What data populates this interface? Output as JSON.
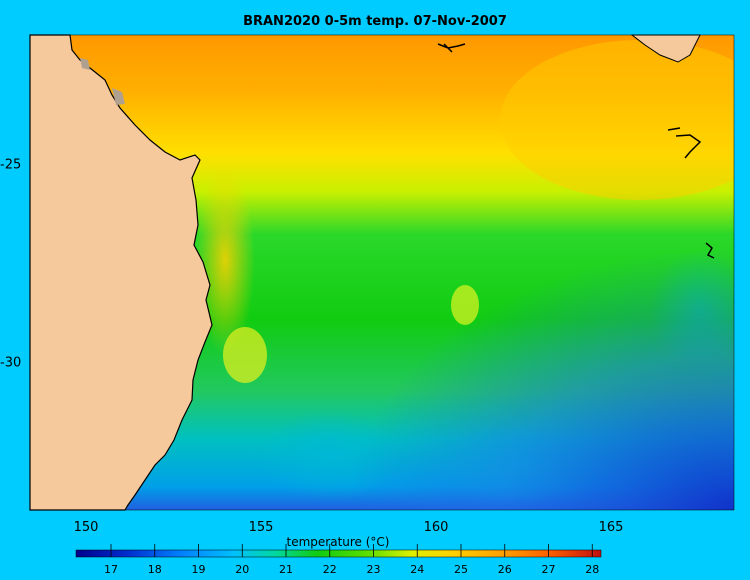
{
  "title": "BRAN2020 0-5m temp. 07-Nov-2007",
  "map": {
    "x_ticks": [
      "150",
      "155",
      "160",
      "165"
    ],
    "y_ticks": [
      "-25",
      "-30"
    ],
    "colorbar_label": "temperature (°C)",
    "colorbar_ticks": [
      "17",
      "18",
      "19",
      "20",
      "21",
      "22",
      "23",
      "24",
      "25",
      "26",
      "27",
      "28"
    ],
    "colors": {
      "background": "#00ccff",
      "land": "#f5c99b",
      "coastline": "#000000",
      "warm": "#ff9900",
      "mid": "#ffee00",
      "green": "#11cc11",
      "cool": "#00b0e0",
      "cold": "#1144dd"
    }
  },
  "chart_data": {
    "type": "heatmap",
    "title": "BRAN2020 0-5m temp. 07-Nov-2007",
    "xlim": [
      148.5,
      168.5
    ],
    "ylim": [
      -33.7,
      -21.8
    ],
    "x_ticks": [
      150,
      155,
      160,
      165
    ],
    "y_ticks": [
      -25,
      -30
    ],
    "colorbar": {
      "label": "temperature (°C)",
      "range": [
        16.2,
        28.2
      ],
      "ticks": [
        17,
        18,
        19,
        20,
        21,
        22,
        23,
        24,
        25,
        26,
        27,
        28
      ]
    }
  }
}
